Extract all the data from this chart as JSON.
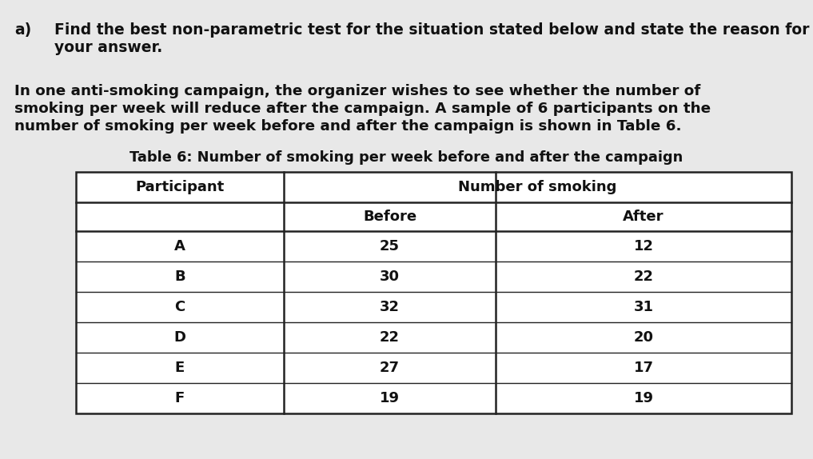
{
  "background_color": "#e8e8e8",
  "question_label": "a)",
  "question_text_line1": "Find the best non-parametric test for the situation stated below and state the reason for",
  "question_text_line2": "your answer.",
  "body_text_line1": "In one anti-smoking campaign, the organizer wishes to see whether the number of",
  "body_text_line2": "smoking per week will reduce after the campaign. A sample of 6 participants on the",
  "body_text_line3": "number of smoking per week before and after the campaign is shown in Table 6.",
  "table_title": "Table 6: Number of smoking per week before and after the campaign",
  "col_header1": "Participant",
  "col_header2": "Number of smoking",
  "col_subheader1": "Before",
  "col_subheader2": "After",
  "participants": [
    "A",
    "B",
    "C",
    "D",
    "E",
    "F"
  ],
  "before": [
    25,
    30,
    32,
    22,
    27,
    19
  ],
  "after": [
    12,
    22,
    31,
    20,
    17,
    19
  ],
  "font_size_question": 13.5,
  "font_size_body": 13.2,
  "font_size_table_title": 12.8,
  "font_size_table": 13.0,
  "text_color": "#111111"
}
